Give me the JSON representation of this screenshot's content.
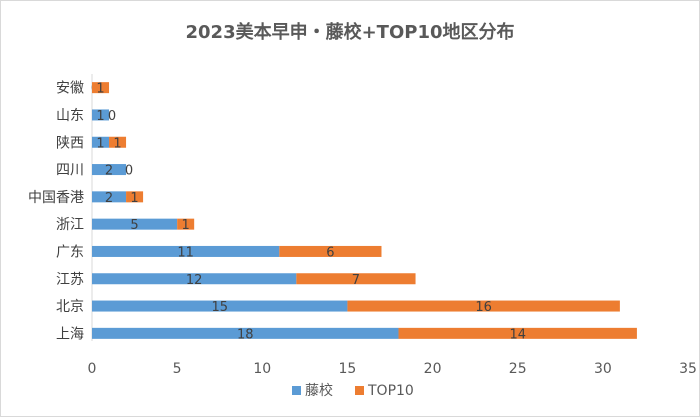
{
  "chart_data": {
    "type": "bar",
    "orientation": "horizontal",
    "stacked": true,
    "title": "2023美本早申・藤校+TOP10地区分布",
    "categories": [
      "上海",
      "北京",
      "江苏",
      "广东",
      "浙江",
      "中国香港",
      "四川",
      "陕西",
      "山东",
      "安徽"
    ],
    "series": [
      {
        "name": "藤校",
        "values": [
          18,
          15,
          12,
          11,
          5,
          2,
          2,
          1,
          1,
          0
        ],
        "color": "#5b9bd5"
      },
      {
        "name": "TOP10",
        "values": [
          14,
          16,
          7,
          6,
          1,
          1,
          0,
          1,
          0,
          1
        ],
        "color": "#ed7d31"
      }
    ],
    "x_ticks": [
      "0",
      "5",
      "10",
      "15",
      "20",
      "25",
      "30",
      "35"
    ],
    "xlim": [
      0,
      35
    ],
    "grid": false,
    "legend_position": "bottom"
  }
}
